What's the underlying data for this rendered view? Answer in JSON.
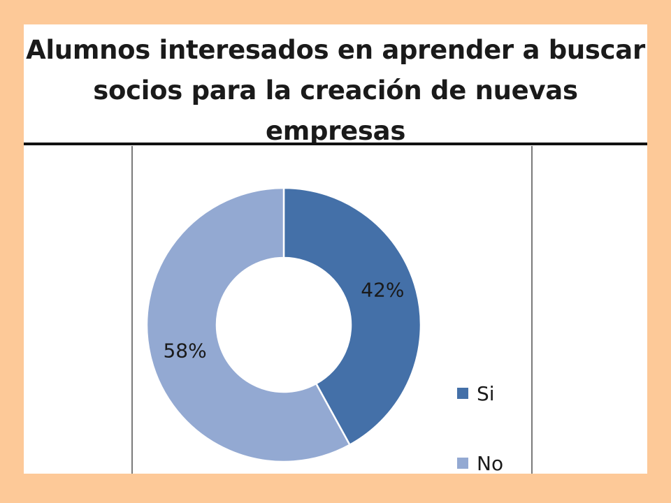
{
  "chart_data": {
    "type": "pie",
    "style": "donut",
    "title_lines": [
      "Alumnos interesados en aprender a buscar",
      "socios para la creación de nuevas empresas"
    ],
    "categories": [
      "Si",
      "No"
    ],
    "values": [
      42,
      58
    ],
    "labels": [
      "42%",
      "58%"
    ],
    "colors": [
      "#4470a8",
      "#93a9d2"
    ],
    "legend_position": "bottom-right"
  }
}
